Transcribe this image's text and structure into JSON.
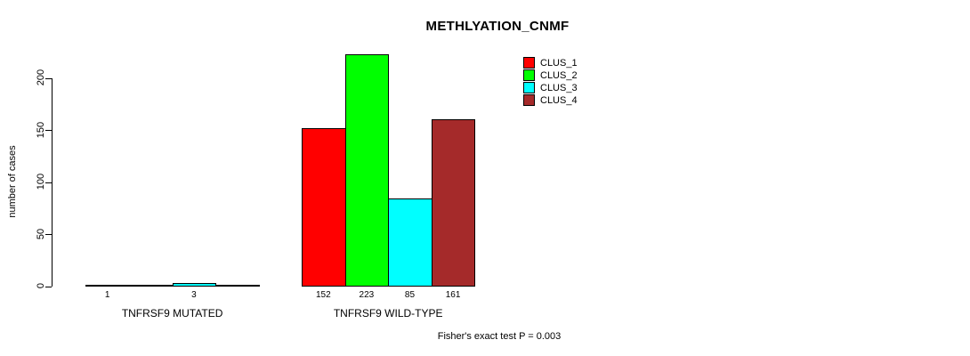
{
  "title": "METHLYATION_CNMF",
  "ylabel": "number of cases",
  "footnote": "Fisher's exact test P = 0.003",
  "legend": {
    "position": "top-right",
    "items": [
      "CLUS_1",
      "CLUS_2",
      "CLUS_3",
      "CLUS_4"
    ]
  },
  "chart_data": {
    "type": "bar",
    "title": "METHLYATION_CNMF",
    "xlabel": "",
    "ylabel": "number of cases",
    "ylim": [
      0,
      200
    ],
    "yticks": [
      0,
      50,
      100,
      150,
      200
    ],
    "grid": false,
    "legend_position": "top-right",
    "groups": [
      "TNFRSF9 MUTATED",
      "TNFRSF9 WILD-TYPE"
    ],
    "series": [
      {
        "name": "CLUS_1",
        "color": "#FF0000",
        "values": [
          1,
          152
        ]
      },
      {
        "name": "CLUS_2",
        "color": "#00FF00",
        "values": [
          0,
          223
        ]
      },
      {
        "name": "CLUS_3",
        "color": "#00FFFF",
        "values": [
          3,
          85
        ]
      },
      {
        "name": "CLUS_4",
        "color": "#A52A2A",
        "values": [
          0,
          161
        ]
      }
    ],
    "bar_value_labels": "values shown under each bar, zeros unlabeled",
    "annotation": "Fisher's exact test P = 0.003"
  }
}
